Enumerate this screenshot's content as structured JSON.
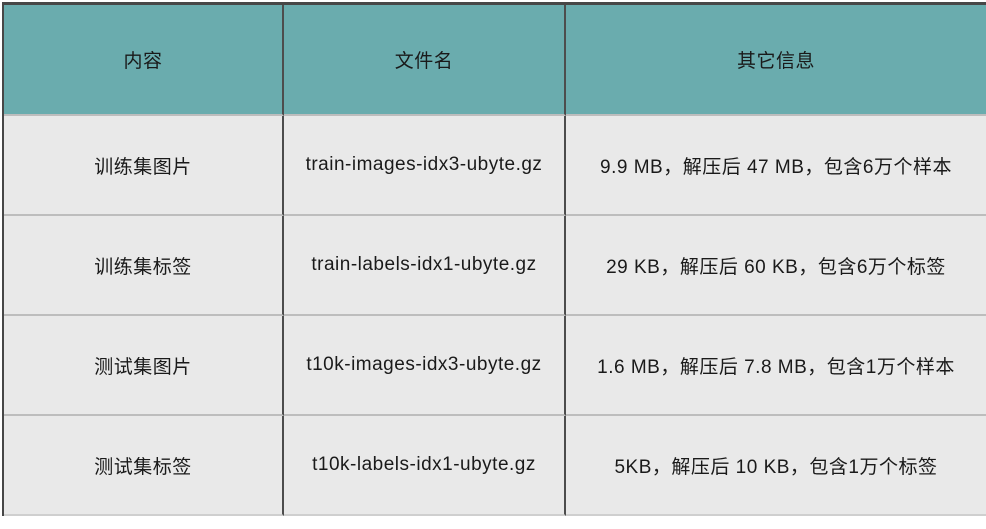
{
  "chart_data": {
    "type": "table",
    "title": "",
    "columns": [
      "内容",
      "文件名",
      "其它信息"
    ],
    "rows": [
      [
        "训练集图片",
        "train-images-idx3-ubyte.gz",
        "9.9 MB，解压后 47 MB，包含6万个样本"
      ],
      [
        "训练集标签",
        "train-labels-idx1-ubyte.gz",
        "29 KB，解压后 60 KB，包含6万个标签"
      ],
      [
        "测试集图片",
        "t10k-images-idx3-ubyte.gz",
        "1.6 MB，解压后 7.8 MB，包含1万个样本"
      ],
      [
        "测试集标签",
        "t10k-labels-idx1-ubyte.gz",
        "5KB，解压后 10 KB，包含1万个标签"
      ]
    ]
  },
  "colors": {
    "header_bg": "#6aacae",
    "row_bg": "#e9e9e9",
    "text": "#1a1a1a",
    "column_border": "#4d4d4d",
    "row_border": "#bdbdbd",
    "outer_border": "#474747",
    "page_bg": "#ffffff"
  }
}
